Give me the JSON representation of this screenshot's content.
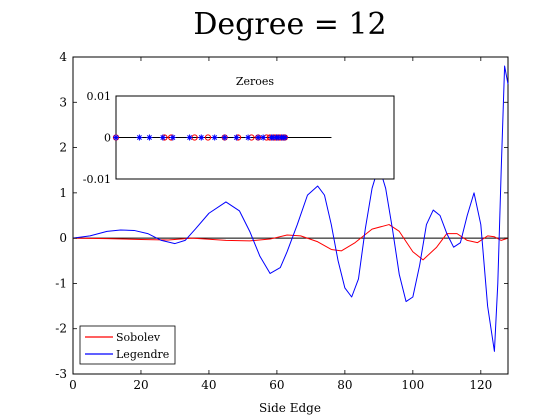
{
  "chart_data": {
    "type": "line",
    "title": "Degree = 12",
    "xlabel": "Side Edge",
    "ylabel": "",
    "xlim": [
      0,
      128
    ],
    "ylim": [
      -3,
      4
    ],
    "xticks": [
      0,
      20,
      40,
      60,
      80,
      100,
      120
    ],
    "yticks": [
      -3,
      -2,
      -1,
      0,
      1,
      2,
      3,
      4
    ],
    "legend": {
      "placement": "bottom-left",
      "entries": [
        "Sobolev",
        "Legendre"
      ]
    },
    "colors": {
      "Sobolev": "#ff0000",
      "Legendre": "#0000ff",
      "zero_line": "#000000"
    },
    "series": [
      {
        "name": "Sobolev",
        "x": [
          0,
          10,
          20,
          28,
          35,
          45,
          52,
          58,
          63,
          67,
          72,
          76,
          79,
          83,
          88,
          93,
          96,
          100,
          103,
          107,
          110,
          113,
          116,
          119,
          122,
          124,
          126,
          128
        ],
        "y": [
          0,
          -0.01,
          -0.03,
          -0.04,
          0,
          -0.05,
          -0.06,
          -0.02,
          0.07,
          0.05,
          -0.08,
          -0.25,
          -0.28,
          -0.1,
          0.2,
          0.3,
          0.15,
          -0.3,
          -0.48,
          -0.2,
          0.1,
          0.1,
          -0.05,
          -0.1,
          0.05,
          0.03,
          -0.05,
          0
        ]
      },
      {
        "name": "Legendre",
        "x": [
          0,
          5,
          10,
          14,
          18,
          22,
          26,
          30,
          33,
          36,
          40,
          45,
          49,
          52,
          55,
          58,
          61,
          63,
          66,
          69,
          72,
          74,
          76,
          78,
          80,
          82,
          84,
          86,
          88,
          90,
          92,
          94,
          96,
          98,
          100,
          102,
          104,
          106,
          108,
          110,
          112,
          114,
          116,
          118,
          120,
          122,
          124,
          125,
          126,
          127,
          128
        ],
        "y": [
          0,
          0.05,
          0.15,
          0.18,
          0.17,
          0.1,
          -0.05,
          -0.12,
          -0.05,
          0.2,
          0.55,
          0.8,
          0.6,
          0.15,
          -0.4,
          -0.78,
          -0.65,
          -0.3,
          0.3,
          0.95,
          1.15,
          0.95,
          0.3,
          -0.5,
          -1.1,
          -1.3,
          -0.9,
          0.2,
          1.1,
          1.6,
          1.1,
          0.2,
          -0.8,
          -1.4,
          -1.3,
          -0.6,
          0.3,
          0.62,
          0.5,
          0.1,
          -0.2,
          -0.1,
          0.5,
          1.0,
          0.3,
          -1.5,
          -2.5,
          -1.0,
          1.5,
          3.8,
          3.4
        ]
      }
    ],
    "inset": {
      "title": "Zeroes",
      "ylim": [
        -0.01,
        0.01
      ],
      "yticks": [
        -0.01,
        0,
        0.01
      ],
      "ytick_labels": [
        "-0.01",
        "0",
        "0.01"
      ],
      "xlim": [
        0,
        128
      ],
      "series": [
        {
          "name": "Sobolev",
          "marker": "circle",
          "x": [
            0,
            29,
            33,
            47,
            55,
            65,
            73,
            81,
            85,
            90,
            92,
            94,
            95,
            96,
            97,
            98,
            99,
            100,
            100.5,
            101
          ],
          "y": [
            0,
            0,
            0,
            0,
            0,
            0,
            0,
            0,
            0,
            0,
            0,
            0,
            0,
            0,
            0,
            0,
            0,
            0,
            0,
            0
          ]
        },
        {
          "name": "Legendre",
          "marker": "star",
          "x": [
            0,
            14,
            20,
            28,
            34,
            44,
            51,
            59,
            65,
            72,
            79,
            85,
            88,
            93,
            94,
            96,
            97,
            99,
            100,
            101
          ],
          "y": [
            0,
            0,
            0,
            0,
            0,
            0,
            0,
            0,
            0,
            0,
            0,
            0,
            0,
            0,
            0,
            0,
            0,
            0,
            0,
            0
          ]
        }
      ]
    }
  }
}
